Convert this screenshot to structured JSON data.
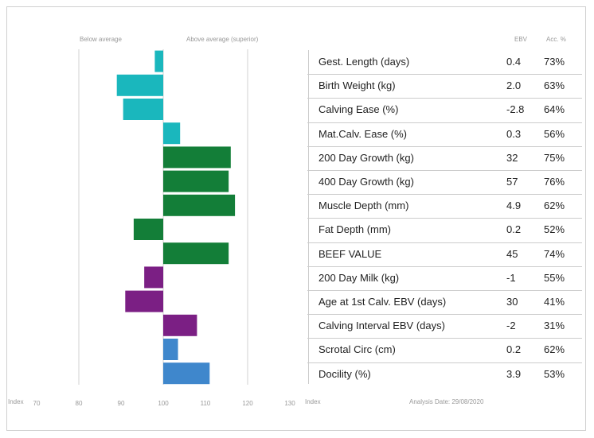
{
  "chart_data": {
    "type": "bar",
    "orientation": "horizontal",
    "header": {
      "left": "Below average",
      "right": "Above average (superior)",
      "col_ebv": "EBV",
      "col_acc": "Acc. %"
    },
    "axis": {
      "label_left": "Index",
      "label_right": "Index",
      "ticks": [
        "70",
        "80",
        "90",
        "100",
        "110",
        "120",
        "130"
      ],
      "range": [
        70,
        130
      ],
      "baseline": 100,
      "gridlines": [
        80,
        120
      ]
    },
    "rows": [
      {
        "label": "Gest. Length (days)",
        "ebv": "0.4",
        "acc": "73%",
        "value": 98,
        "color": "#1ab7bd"
      },
      {
        "label": "Birth Weight (kg)",
        "ebv": "2.0",
        "acc": "63%",
        "value": 89,
        "color": "#1ab7bd"
      },
      {
        "label": "Calving Ease (%)",
        "ebv": "-2.8",
        "acc": "64%",
        "value": 90.5,
        "color": "#1ab7bd"
      },
      {
        "label": "Mat.Calv. Ease (%)",
        "ebv": "0.3",
        "acc": "56%",
        "value": 104,
        "color": "#1ab7bd"
      },
      {
        "label": "200 Day Growth (kg)",
        "ebv": "32",
        "acc": "75%",
        "value": 116,
        "color": "#137e38"
      },
      {
        "label": "400 Day Growth (kg)",
        "ebv": "57",
        "acc": "76%",
        "value": 115.5,
        "color": "#137e38"
      },
      {
        "label": "Muscle Depth (mm)",
        "ebv": "4.9",
        "acc": "62%",
        "value": 117,
        "color": "#137e38"
      },
      {
        "label": "Fat Depth (mm)",
        "ebv": "0.2",
        "acc": "52%",
        "value": 93,
        "color": "#137e38"
      },
      {
        "label": "BEEF VALUE",
        "ebv": "45",
        "acc": "74%",
        "value": 115.5,
        "color": "#137e38"
      },
      {
        "label": "200 Day Milk (kg)",
        "ebv": "-1",
        "acc": "55%",
        "value": 95.5,
        "color": "#7b1f84"
      },
      {
        "label": "Age at 1st Calv. EBV (days)",
        "ebv": "30",
        "acc": "41%",
        "value": 91,
        "color": "#7b1f84"
      },
      {
        "label": "Calving Interval EBV (days)",
        "ebv": "-2",
        "acc": "31%",
        "value": 108,
        "color": "#7b1f84"
      },
      {
        "label": "Scrotal Circ (cm)",
        "ebv": "0.2",
        "acc": "62%",
        "value": 103.5,
        "color": "#3f87cc"
      },
      {
        "label": "Docility (%)",
        "ebv": "3.9",
        "acc": "53%",
        "value": 111,
        "color": "#3f87cc"
      }
    ],
    "footer": "Analysis Date: 29/08/2020"
  }
}
